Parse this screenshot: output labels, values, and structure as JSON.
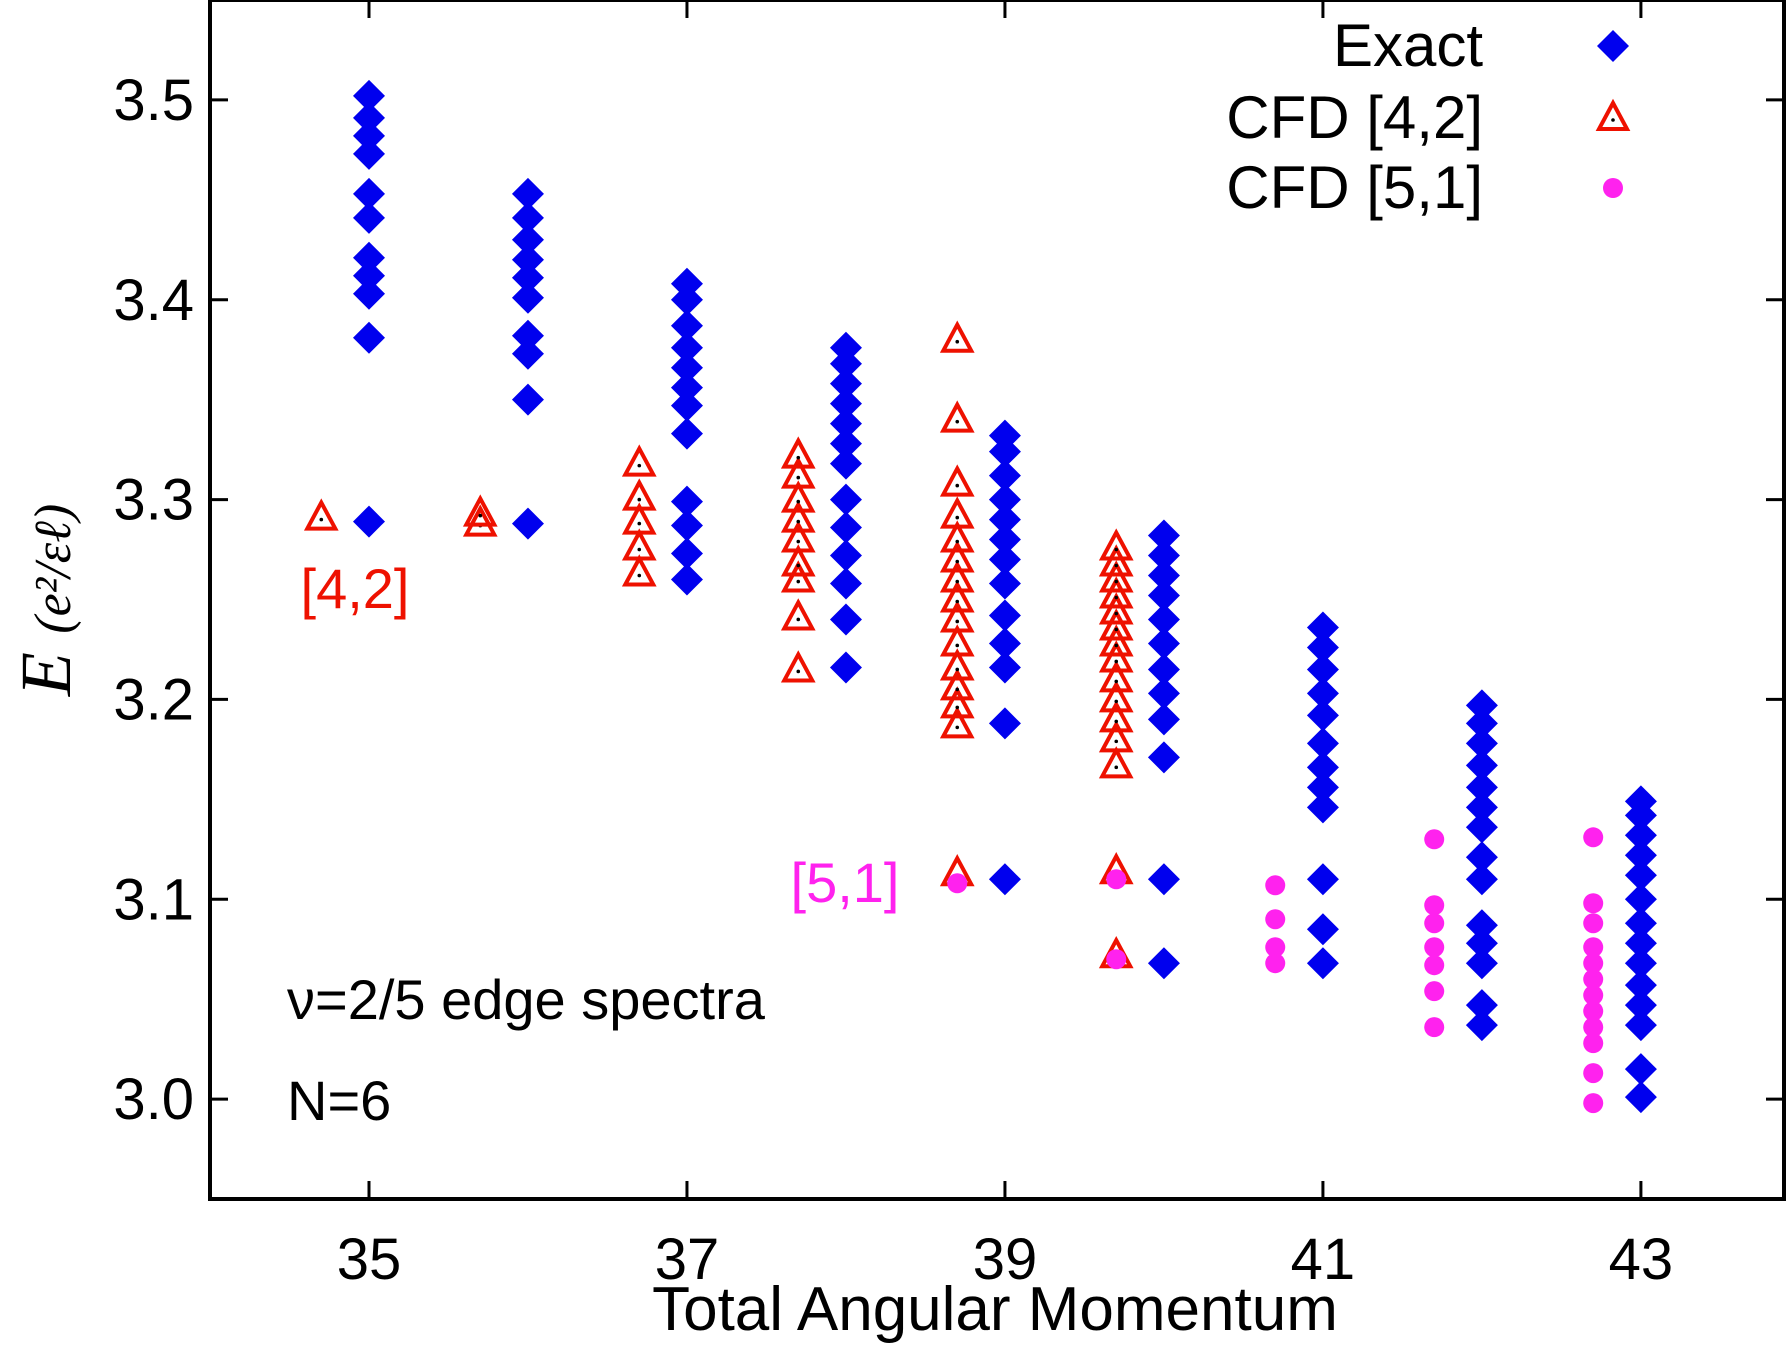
{
  "chart_data": {
    "type": "scatter",
    "xlabel": "Total Angular Momentum",
    "ylabel": {
      "main": "E",
      "unit": "(e²/εℓ)"
    },
    "xlim": [
      34.0,
      43.9
    ],
    "ylim": [
      2.95,
      3.55
    ],
    "xticks": [
      35,
      37,
      39,
      41,
      43
    ],
    "yticks": [
      3.0,
      3.1,
      3.2,
      3.3,
      3.4,
      3.5
    ],
    "ytick_labels": [
      "3.0",
      "3.1",
      "3.2",
      "3.3",
      "3.4",
      "3.5"
    ],
    "legend_position": "top-right",
    "annotations": {
      "system": "ν=2/5 edge spectra",
      "particles": "N=6",
      "label_42": "[4,2]",
      "label_51": "[5,1]"
    },
    "series": [
      {
        "name": "Exact",
        "marker": "diamond",
        "color": "#0000ee",
        "points": [
          [
            35,
            3.289
          ],
          [
            35,
            3.381
          ],
          [
            35,
            3.403
          ],
          [
            35,
            3.412
          ],
          [
            35,
            3.421
          ],
          [
            35,
            3.441
          ],
          [
            35,
            3.453
          ],
          [
            35,
            3.473
          ],
          [
            35,
            3.482
          ],
          [
            35,
            3.491
          ],
          [
            35,
            3.502
          ],
          [
            36,
            3.288
          ],
          [
            36,
            3.35
          ],
          [
            36,
            3.373
          ],
          [
            36,
            3.382
          ],
          [
            36,
            3.401
          ],
          [
            36,
            3.411
          ],
          [
            36,
            3.42
          ],
          [
            36,
            3.43
          ],
          [
            36,
            3.441
          ],
          [
            36,
            3.453
          ],
          [
            37,
            3.26
          ],
          [
            37,
            3.273
          ],
          [
            37,
            3.287
          ],
          [
            37,
            3.299
          ],
          [
            37,
            3.333
          ],
          [
            37,
            3.347
          ],
          [
            37,
            3.356
          ],
          [
            37,
            3.366
          ],
          [
            37,
            3.376
          ],
          [
            37,
            3.387
          ],
          [
            37,
            3.4
          ],
          [
            37,
            3.408
          ],
          [
            38,
            3.216
          ],
          [
            38,
            3.24
          ],
          [
            38,
            3.258
          ],
          [
            38,
            3.272
          ],
          [
            38,
            3.286
          ],
          [
            38,
            3.3
          ],
          [
            38,
            3.318
          ],
          [
            38,
            3.328
          ],
          [
            38,
            3.338
          ],
          [
            38,
            3.348
          ],
          [
            38,
            3.358
          ],
          [
            38,
            3.368
          ],
          [
            38,
            3.376
          ],
          [
            39,
            3.11
          ],
          [
            39,
            3.188
          ],
          [
            39,
            3.216
          ],
          [
            39,
            3.228
          ],
          [
            39,
            3.242
          ],
          [
            39,
            3.258
          ],
          [
            39,
            3.27
          ],
          [
            39,
            3.28
          ],
          [
            39,
            3.29
          ],
          [
            39,
            3.3
          ],
          [
            39,
            3.312
          ],
          [
            39,
            3.324
          ],
          [
            39,
            3.332
          ],
          [
            40,
            3.068
          ],
          [
            40,
            3.11
          ],
          [
            40,
            3.171
          ],
          [
            40,
            3.19
          ],
          [
            40,
            3.203
          ],
          [
            40,
            3.215
          ],
          [
            40,
            3.228
          ],
          [
            40,
            3.24
          ],
          [
            40,
            3.252
          ],
          [
            40,
            3.262
          ],
          [
            40,
            3.272
          ],
          [
            40,
            3.282
          ],
          [
            41,
            3.068
          ],
          [
            41,
            3.085
          ],
          [
            41,
            3.11
          ],
          [
            41,
            3.146
          ],
          [
            41,
            3.156
          ],
          [
            41,
            3.166
          ],
          [
            41,
            3.178
          ],
          [
            41,
            3.192
          ],
          [
            41,
            3.203
          ],
          [
            41,
            3.215
          ],
          [
            41,
            3.226
          ],
          [
            41,
            3.236
          ],
          [
            42,
            3.037
          ],
          [
            42,
            3.047
          ],
          [
            42,
            3.068
          ],
          [
            42,
            3.078
          ],
          [
            42,
            3.087
          ],
          [
            42,
            3.11
          ],
          [
            42,
            3.121
          ],
          [
            42,
            3.136
          ],
          [
            42,
            3.146
          ],
          [
            42,
            3.156
          ],
          [
            42,
            3.167
          ],
          [
            42,
            3.178
          ],
          [
            42,
            3.188
          ],
          [
            42,
            3.197
          ],
          [
            43,
            3.001
          ],
          [
            43,
            3.015
          ],
          [
            43,
            3.037
          ],
          [
            43,
            3.047
          ],
          [
            43,
            3.057
          ],
          [
            43,
            3.068
          ],
          [
            43,
            3.078
          ],
          [
            43,
            3.088
          ],
          [
            43,
            3.1
          ],
          [
            43,
            3.112
          ],
          [
            43,
            3.122
          ],
          [
            43,
            3.132
          ],
          [
            43,
            3.142
          ],
          [
            43,
            3.149
          ]
        ]
      },
      {
        "name": "CFD [4,2]",
        "marker": "triangle-open",
        "color": "#ee1100",
        "points": [
          [
            34.7,
            3.291
          ],
          [
            35.7,
            3.288
          ],
          [
            35.7,
            3.293
          ],
          [
            36.7,
            3.263
          ],
          [
            36.7,
            3.276
          ],
          [
            36.7,
            3.289
          ],
          [
            36.7,
            3.301
          ],
          [
            36.7,
            3.318
          ],
          [
            37.7,
            3.215
          ],
          [
            37.7,
            3.241
          ],
          [
            37.7,
            3.26
          ],
          [
            37.7,
            3.268
          ],
          [
            37.7,
            3.28
          ],
          [
            37.7,
            3.29
          ],
          [
            37.7,
            3.3
          ],
          [
            37.7,
            3.312
          ],
          [
            37.7,
            3.322
          ],
          [
            38.7,
            3.113
          ],
          [
            38.7,
            3.187
          ],
          [
            38.7,
            3.197
          ],
          [
            38.7,
            3.206
          ],
          [
            38.7,
            3.216
          ],
          [
            38.7,
            3.228
          ],
          [
            38.7,
            3.24
          ],
          [
            38.7,
            3.25
          ],
          [
            38.7,
            3.26
          ],
          [
            38.7,
            3.27
          ],
          [
            38.7,
            3.28
          ],
          [
            38.7,
            3.292
          ],
          [
            38.7,
            3.308
          ],
          [
            38.7,
            3.34
          ],
          [
            38.7,
            3.38
          ],
          [
            39.7,
            3.072
          ],
          [
            39.7,
            3.114
          ],
          [
            39.7,
            3.167
          ],
          [
            39.7,
            3.18
          ],
          [
            39.7,
            3.19
          ],
          [
            39.7,
            3.2
          ],
          [
            39.7,
            3.21
          ],
          [
            39.7,
            3.22
          ],
          [
            39.7,
            3.228
          ],
          [
            39.7,
            3.236
          ],
          [
            39.7,
            3.244
          ],
          [
            39.7,
            3.252
          ],
          [
            39.7,
            3.26
          ],
          [
            39.7,
            3.268
          ],
          [
            39.7,
            3.276
          ]
        ]
      },
      {
        "name": "CFD [5,1]",
        "marker": "circle",
        "color": "#ff22ee",
        "points": [
          [
            38.7,
            3.108
          ],
          [
            39.7,
            3.07
          ],
          [
            39.7,
            3.11
          ],
          [
            40.7,
            3.068
          ],
          [
            40.7,
            3.076
          ],
          [
            40.7,
            3.09
          ],
          [
            40.7,
            3.107
          ],
          [
            41.7,
            3.036
          ],
          [
            41.7,
            3.054
          ],
          [
            41.7,
            3.067
          ],
          [
            41.7,
            3.076
          ],
          [
            41.7,
            3.088
          ],
          [
            41.7,
            3.097
          ],
          [
            41.7,
            3.13
          ],
          [
            42.7,
            2.998
          ],
          [
            42.7,
            3.013
          ],
          [
            42.7,
            3.028
          ],
          [
            42.7,
            3.036
          ],
          [
            42.7,
            3.044
          ],
          [
            42.7,
            3.052
          ],
          [
            42.7,
            3.06
          ],
          [
            42.7,
            3.068
          ],
          [
            42.7,
            3.076
          ],
          [
            42.7,
            3.088
          ],
          [
            42.7,
            3.098
          ],
          [
            42.7,
            3.131
          ]
        ]
      }
    ]
  }
}
